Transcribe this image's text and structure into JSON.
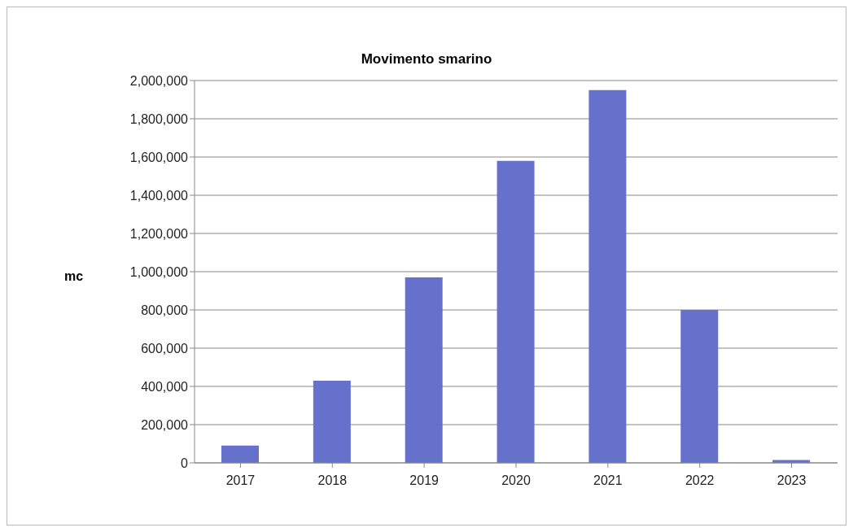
{
  "chart_data": {
    "type": "bar",
    "title": "Movimento smarino",
    "ylabel": "mc",
    "categories": [
      "2017",
      "2018",
      "2019",
      "2020",
      "2021",
      "2022",
      "2023"
    ],
    "values": [
      90000,
      430000,
      970000,
      1580000,
      1950000,
      800000,
      15000
    ],
    "color": "#6671cb",
    "ylim": [
      0,
      2000000
    ],
    "yticks": [
      0,
      {
        "value": 200000,
        "label": "200,000"
      },
      {
        "value": 400000,
        "label": "400,000"
      },
      {
        "value": 600000,
        "label": "600,000"
      },
      {
        "value": 800000,
        "label": "800,000"
      },
      {
        "value": 1000000,
        "label": "1,000,000"
      },
      {
        "value": 1200000,
        "label": "1,200,000"
      },
      {
        "value": 1400000,
        "label": "1,400,000"
      },
      {
        "value": 1600000,
        "label": "1,600,000"
      },
      {
        "value": 1800000,
        "label": "1,800,000"
      },
      {
        "value": 2000000,
        "label": "2,000,000"
      }
    ],
    "grid": "y",
    "legend": false
  }
}
